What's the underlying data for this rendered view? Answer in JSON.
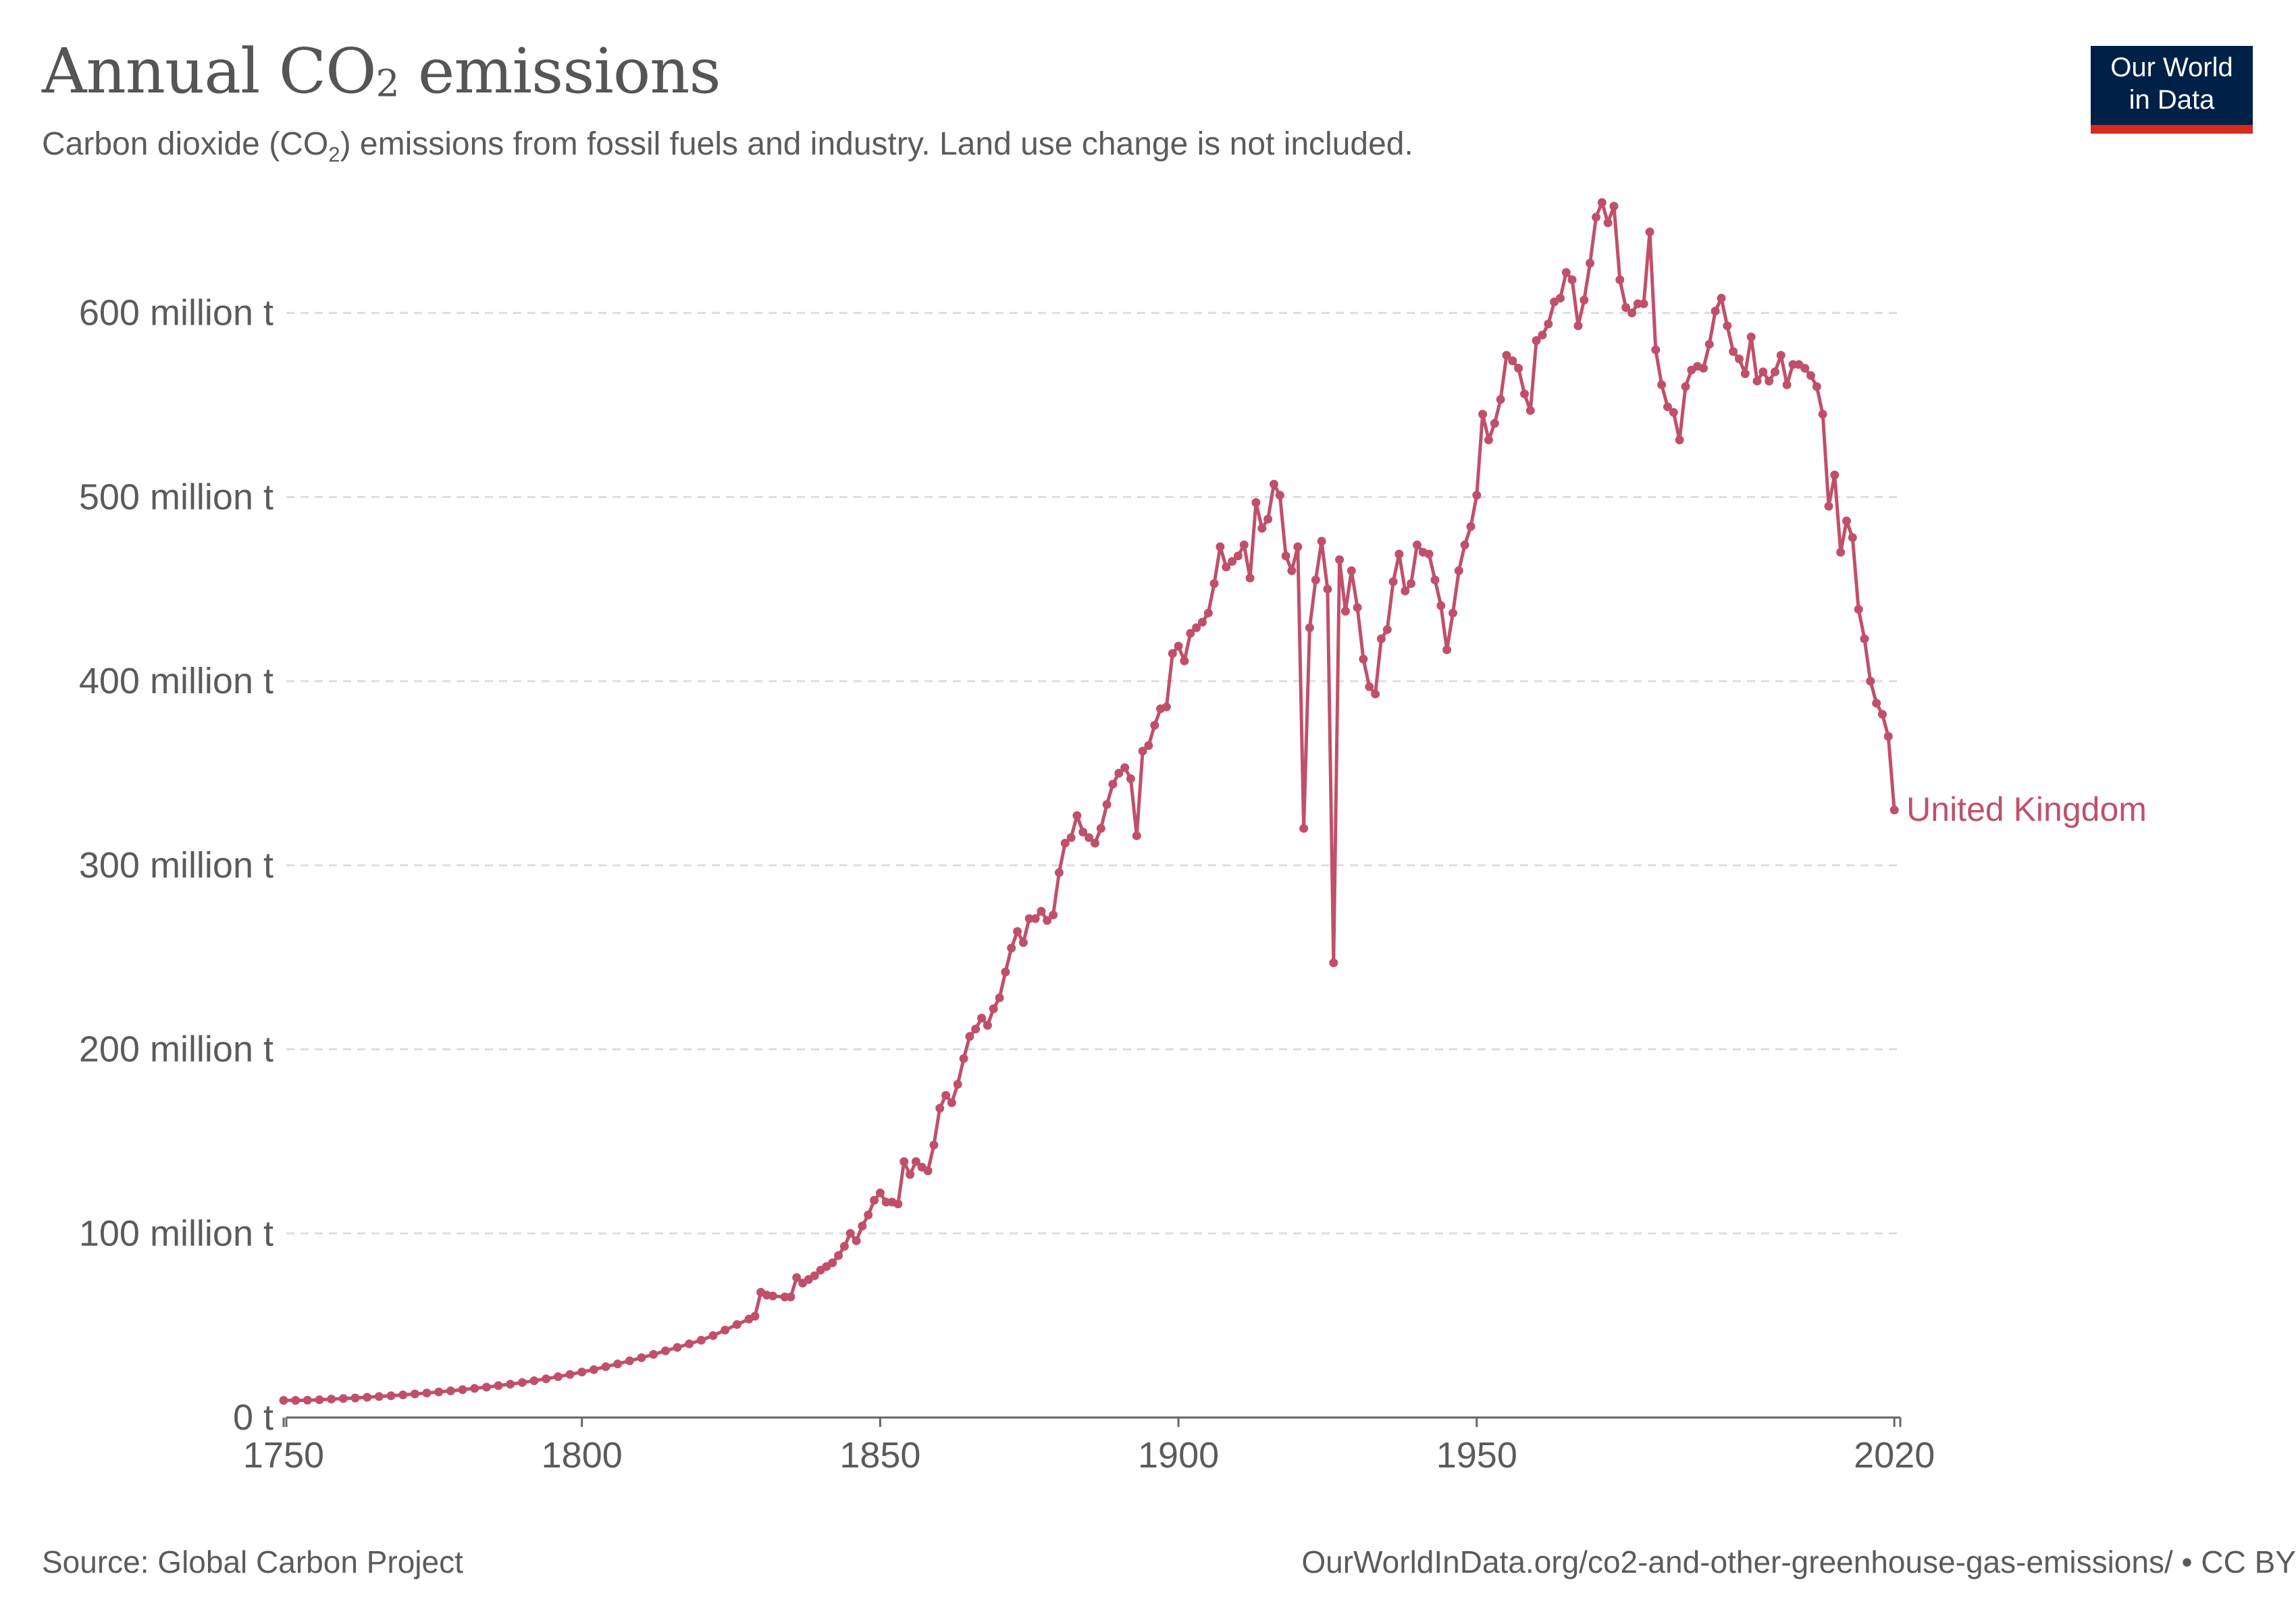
{
  "header": {
    "title_main": "Annual CO",
    "title_sub": "2",
    "title_tail": " emissions",
    "subtitle_pre": "Carbon dioxide (CO",
    "subtitle_sub": "2",
    "subtitle_post": ") emissions from fossil fuels and industry. Land use change is not included."
  },
  "logo": {
    "line1": "Our World",
    "line2": "in Data"
  },
  "footer": {
    "source": "Source: Global Carbon Project",
    "url": "OurWorldInData.org/co2-and-other-greenhouse-gas-emissions/ • CC BY"
  },
  "colors": {
    "series": "#c0506a",
    "grid": "#dddddd",
    "axis": "#666666",
    "text": "#5b5b5b"
  },
  "chart_data": {
    "type": "line",
    "title": "Annual CO2 emissions",
    "subtitle": "Carbon dioxide (CO2) emissions from fossil fuels and industry. Land use change is not included.",
    "xlim": [
      1750,
      2021
    ],
    "ylim": [
      0,
      660
    ],
    "y_ticks": [
      {
        "value": 0,
        "label": "0 t"
      },
      {
        "value": 100,
        "label": "100 million t"
      },
      {
        "value": 200,
        "label": "200 million t"
      },
      {
        "value": 300,
        "label": "300 million t"
      },
      {
        "value": 400,
        "label": "400 million t"
      },
      {
        "value": 500,
        "label": "500 million t"
      },
      {
        "value": 600,
        "label": "600 million t"
      }
    ],
    "x_ticks": [
      {
        "value": 1750,
        "label": "1750"
      },
      {
        "value": 1800,
        "label": "1800"
      },
      {
        "value": 1850,
        "label": "1850"
      },
      {
        "value": 1900,
        "label": "1900"
      },
      {
        "value": 1950,
        "label": "1950"
      },
      {
        "value": 2020,
        "label": "2020"
      }
    ],
    "grid": "horizontal dashed",
    "legend": "inline label at end of line",
    "y_unit": "million t",
    "series": [
      {
        "name": "United Kingdom",
        "color": "#c0506a",
        "points": [
          [
            1750,
            9.3
          ],
          [
            1752,
            9.3
          ],
          [
            1754,
            9.4
          ],
          [
            1756,
            9.6
          ],
          [
            1758,
            10
          ],
          [
            1760,
            10.3
          ],
          [
            1762,
            10.6
          ],
          [
            1764,
            11
          ],
          [
            1766,
            11.4
          ],
          [
            1768,
            11.8
          ],
          [
            1770,
            12.3
          ],
          [
            1772,
            12.8
          ],
          [
            1774,
            13.3
          ],
          [
            1776,
            13.9
          ],
          [
            1778,
            14.5
          ],
          [
            1780,
            15.1
          ],
          [
            1782,
            15.8
          ],
          [
            1784,
            16.5
          ],
          [
            1786,
            17.3
          ],
          [
            1788,
            18.1
          ],
          [
            1790,
            19
          ],
          [
            1792,
            20
          ],
          [
            1794,
            21
          ],
          [
            1796,
            22.2
          ],
          [
            1798,
            23.4
          ],
          [
            1800,
            24.7
          ],
          [
            1802,
            26
          ],
          [
            1804,
            27.6
          ],
          [
            1806,
            29.1
          ],
          [
            1808,
            30.8
          ],
          [
            1810,
            32.5
          ],
          [
            1812,
            34.3
          ],
          [
            1814,
            36.2
          ],
          [
            1816,
            38.1
          ],
          [
            1818,
            40
          ],
          [
            1820,
            42
          ],
          [
            1822,
            44.5
          ],
          [
            1824,
            47.5
          ],
          [
            1826,
            50.5
          ],
          [
            1828,
            53.5
          ],
          [
            1829,
            55
          ],
          [
            1830,
            68
          ],
          [
            1831,
            66.5
          ],
          [
            1832,
            66
          ],
          [
            1834,
            65.5
          ],
          [
            1835,
            65.5
          ],
          [
            1836,
            76
          ],
          [
            1837,
            73
          ],
          [
            1838,
            75
          ],
          [
            1839,
            77
          ],
          [
            1840,
            80
          ],
          [
            1841,
            82
          ],
          [
            1842,
            84
          ],
          [
            1843,
            88
          ],
          [
            1844,
            93
          ],
          [
            1845,
            100
          ],
          [
            1846,
            96
          ],
          [
            1847,
            104
          ],
          [
            1848,
            110
          ],
          [
            1849,
            118
          ],
          [
            1850,
            122
          ],
          [
            1851,
            117
          ],
          [
            1852,
            117
          ],
          [
            1853,
            116
          ],
          [
            1854,
            139
          ],
          [
            1855,
            132
          ],
          [
            1856,
            139
          ],
          [
            1857,
            136
          ],
          [
            1858,
            134
          ],
          [
            1859,
            148
          ],
          [
            1860,
            168
          ],
          [
            1861,
            175
          ],
          [
            1862,
            171
          ],
          [
            1863,
            181
          ],
          [
            1864,
            195
          ],
          [
            1865,
            207
          ],
          [
            1866,
            211
          ],
          [
            1867,
            217
          ],
          [
            1868,
            213
          ],
          [
            1869,
            222
          ],
          [
            1870,
            228
          ],
          [
            1871,
            242
          ],
          [
            1872,
            255
          ],
          [
            1873,
            264
          ],
          [
            1874,
            258
          ],
          [
            1875,
            271
          ],
          [
            1876,
            271
          ],
          [
            1877,
            275
          ],
          [
            1878,
            270
          ],
          [
            1879,
            273
          ],
          [
            1880,
            296
          ],
          [
            1881,
            312
          ],
          [
            1882,
            315
          ],
          [
            1883,
            327
          ],
          [
            1884,
            318
          ],
          [
            1885,
            315
          ],
          [
            1886,
            312
          ],
          [
            1887,
            320
          ],
          [
            1888,
            333
          ],
          [
            1889,
            344
          ],
          [
            1890,
            350
          ],
          [
            1891,
            353
          ],
          [
            1892,
            347
          ],
          [
            1893,
            316
          ],
          [
            1894,
            362
          ],
          [
            1895,
            365
          ],
          [
            1896,
            376
          ],
          [
            1897,
            385
          ],
          [
            1898,
            386
          ],
          [
            1899,
            415
          ],
          [
            1900,
            419
          ],
          [
            1901,
            411
          ],
          [
            1902,
            426
          ],
          [
            1903,
            429
          ],
          [
            1904,
            432
          ],
          [
            1905,
            437
          ],
          [
            1906,
            453
          ],
          [
            1907,
            473
          ],
          [
            1908,
            462
          ],
          [
            1909,
            465
          ],
          [
            1910,
            468
          ],
          [
            1911,
            474
          ],
          [
            1912,
            456
          ],
          [
            1913,
            497
          ],
          [
            1914,
            483
          ],
          [
            1915,
            488
          ],
          [
            1916,
            507
          ],
          [
            1917,
            501
          ],
          [
            1918,
            468
          ],
          [
            1919,
            460
          ],
          [
            1920,
            473
          ],
          [
            1921,
            320
          ],
          [
            1922,
            429
          ],
          [
            1923,
            455
          ],
          [
            1924,
            476
          ],
          [
            1925,
            450
          ],
          [
            1926,
            247
          ],
          [
            1927,
            466
          ],
          [
            1928,
            438
          ],
          [
            1929,
            460
          ],
          [
            1930,
            440
          ],
          [
            1931,
            412
          ],
          [
            1932,
            397
          ],
          [
            1933,
            393
          ],
          [
            1934,
            423
          ],
          [
            1935,
            428
          ],
          [
            1936,
            454
          ],
          [
            1937,
            469
          ],
          [
            1938,
            449
          ],
          [
            1939,
            453
          ],
          [
            1940,
            474
          ],
          [
            1941,
            470
          ],
          [
            1942,
            469
          ],
          [
            1943,
            455
          ],
          [
            1944,
            441
          ],
          [
            1945,
            417
          ],
          [
            1946,
            437
          ],
          [
            1947,
            460
          ],
          [
            1948,
            474
          ],
          [
            1949,
            484
          ],
          [
            1950,
            501
          ],
          [
            1951,
            545
          ],
          [
            1952,
            531
          ],
          [
            1953,
            540
          ],
          [
            1954,
            553
          ],
          [
            1955,
            577
          ],
          [
            1956,
            574
          ],
          [
            1957,
            570
          ],
          [
            1958,
            556
          ],
          [
            1959,
            547
          ],
          [
            1960,
            585
          ],
          [
            1961,
            588
          ],
          [
            1962,
            594
          ],
          [
            1963,
            606
          ],
          [
            1964,
            608
          ],
          [
            1965,
            622
          ],
          [
            1966,
            618
          ],
          [
            1967,
            593
          ],
          [
            1968,
            607
          ],
          [
            1969,
            627
          ],
          [
            1970,
            652
          ],
          [
            1971,
            660
          ],
          [
            1972,
            649
          ],
          [
            1973,
            658
          ],
          [
            1974,
            618
          ],
          [
            1975,
            603
          ],
          [
            1976,
            600
          ],
          [
            1977,
            605
          ],
          [
            1978,
            605
          ],
          [
            1979,
            644
          ],
          [
            1980,
            580
          ],
          [
            1981,
            561
          ],
          [
            1982,
            549
          ],
          [
            1983,
            546
          ],
          [
            1984,
            531
          ],
          [
            1985,
            560
          ],
          [
            1986,
            569
          ],
          [
            1987,
            571
          ],
          [
            1988,
            570
          ],
          [
            1989,
            583
          ],
          [
            1990,
            601
          ],
          [
            1991,
            608
          ],
          [
            1992,
            593
          ],
          [
            1993,
            579
          ],
          [
            1994,
            575
          ],
          [
            1995,
            567
          ],
          [
            1996,
            587
          ],
          [
            1997,
            563
          ],
          [
            1998,
            568
          ],
          [
            1999,
            563
          ],
          [
            2000,
            568
          ],
          [
            2001,
            577
          ],
          [
            2002,
            561
          ],
          [
            2003,
            572
          ],
          [
            2004,
            572
          ],
          [
            2005,
            570
          ],
          [
            2006,
            566
          ],
          [
            2007,
            560
          ],
          [
            2008,
            545
          ],
          [
            2009,
            495
          ],
          [
            2010,
            512
          ],
          [
            2011,
            470
          ],
          [
            2012,
            487
          ],
          [
            2013,
            478
          ],
          [
            2014,
            439
          ],
          [
            2015,
            423
          ],
          [
            2016,
            400
          ],
          [
            2017,
            388
          ],
          [
            2018,
            382
          ],
          [
            2019,
            370
          ],
          [
            2020,
            330
          ]
        ]
      }
    ]
  }
}
